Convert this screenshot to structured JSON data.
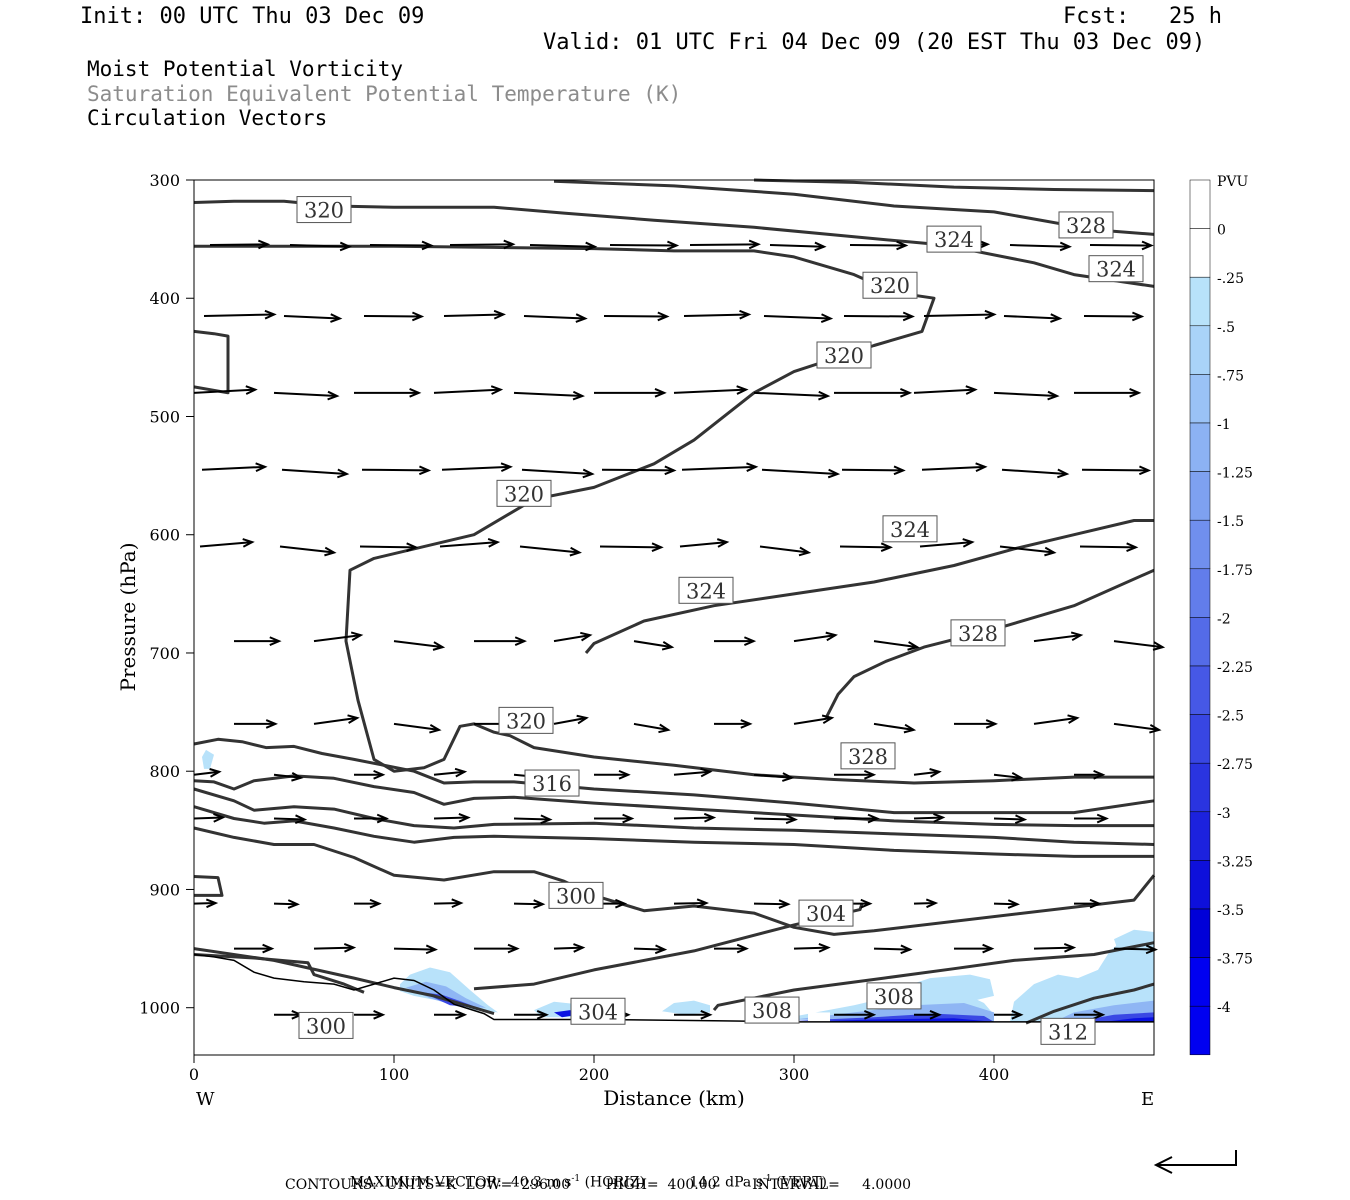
{
  "header": {
    "init": "Init: 00 UTC Thu 03 Dec 09",
    "fcst": "Fcst:   25 h",
    "valid": "Valid: 01 UTC Fri 04 Dec 09 (20 EST Thu 03 Dec 09)"
  },
  "titles": {
    "line1": "Moist Potential Vorticity",
    "line2": "Saturation Equivalent Potential Temperature (K)",
    "line3": "Circulation Vectors"
  },
  "colors": {
    "contour": "#333333",
    "title_secondary": "#8c8c8c",
    "pv_scale": [
      "#ffffff",
      "#ffffff",
      "#b8e2fa",
      "#a9d3f8",
      "#9ac2f6",
      "#8cb2f3",
      "#7ea1f0",
      "#708fee",
      "#627deb",
      "#546be8",
      "#4658e6",
      "#3846e3",
      "#2a34e0",
      "#1c22de",
      "#0e10db",
      "#0000d8",
      "#0000f0"
    ]
  },
  "chart_data": {
    "type": "cross-section",
    "xlabel": "Distance (km)",
    "ylabel": "Pressure (hPa)",
    "xlim": [
      0,
      480
    ],
    "ylim": [
      300,
      1040
    ],
    "y_scale": "linear, inverted",
    "x_ticks": [
      0,
      100,
      200,
      300,
      400
    ],
    "x_tick_labels": [
      "0",
      "100",
      "200",
      "300",
      "400"
    ],
    "y_ticks": [
      300,
      400,
      500,
      600,
      700,
      800,
      900,
      1000
    ],
    "y_tick_labels": [
      "300",
      "400",
      "500",
      "600",
      "700",
      "800",
      "900",
      "1000"
    ],
    "west_label": "W",
    "east_label": "E",
    "grid": false,
    "contour_labels": [
      {
        "text": "320",
        "x": 65,
        "p": 325
      },
      {
        "text": "328",
        "x": 446,
        "p": 338
      },
      {
        "text": "324",
        "x": 380,
        "p": 350
      },
      {
        "text": "324",
        "x": 461,
        "p": 375
      },
      {
        "text": "320",
        "x": 348,
        "p": 389
      },
      {
        "text": "320",
        "x": 325,
        "p": 448
      },
      {
        "text": "320",
        "x": 165,
        "p": 565
      },
      {
        "text": "324",
        "x": 358,
        "p": 595
      },
      {
        "text": "324",
        "x": 256,
        "p": 647
      },
      {
        "text": "328",
        "x": 392,
        "p": 683
      },
      {
        "text": "320",
        "x": 166,
        "p": 757
      },
      {
        "text": "328",
        "x": 337,
        "p": 787
      },
      {
        "text": "316",
        "x": 179,
        "p": 810
      },
      {
        "text": "300",
        "x": 191,
        "p": 905
      },
      {
        "text": "304",
        "x": 316,
        "p": 920
      },
      {
        "text": "308",
        "x": 350,
        "p": 990
      },
      {
        "text": "304",
        "x": 202,
        "p": 1003
      },
      {
        "text": "308",
        "x": 289,
        "p": 1002
      },
      {
        "text": "300",
        "x": 66,
        "p": 1015
      },
      {
        "text": "312",
        "x": 437,
        "p": 1020
      }
    ],
    "colorbar": {
      "label": "PVU",
      "ticks": [
        "0",
        "-.25",
        "-.5",
        "-.75",
        "-1",
        "-1.25",
        "-1.5",
        "-1.75",
        "-2",
        "-2.25",
        "-2.5",
        "-2.75",
        "-3",
        "-3.25",
        "-3.5",
        "-3.75",
        "-4"
      ]
    }
  },
  "footer": {
    "max_vector_label": "MAXIMUM VECTOR:",
    "horiz_value": "40.3 m s",
    "horiz_exp": "-1",
    "horiz_unit": "(HORIZ)",
    "vert_value": "14.2 dPa s",
    "vert_exp": "-1",
    "vert_unit": "(VERT)",
    "contours": "CONTOURS:  UNITS=K  LOW=  296.00        HIGH=  400.00        INTERVAL=     4.0000"
  }
}
